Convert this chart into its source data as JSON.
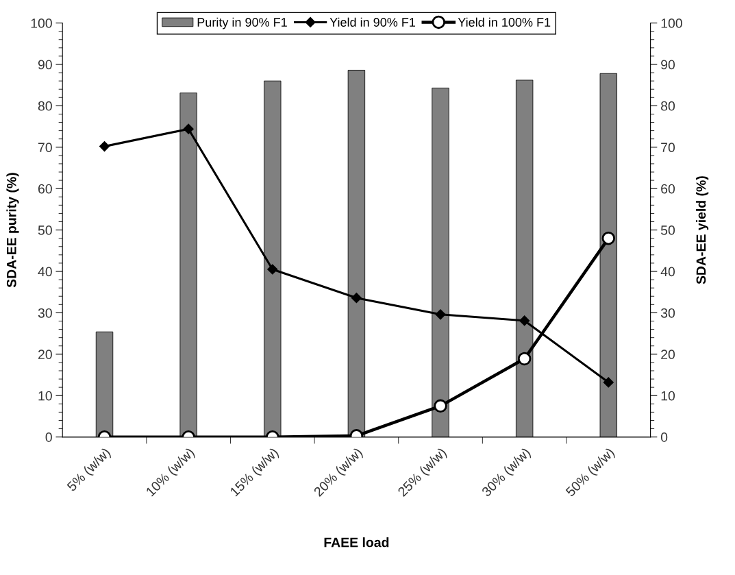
{
  "chart_data": {
    "type": "bar",
    "xlabel": "FAEE load",
    "ylabel": "SDA-EE purity (%)",
    "y2label": "SDA-EE yield (%)",
    "categories": [
      "5% (w/w)",
      "10% (w/w)",
      "15% (w/w)",
      "20% (w/w)",
      "25% (w/w)",
      "30% (w/w)",
      "50% (w/w)"
    ],
    "series": [
      {
        "name": "Purity in 90% F1",
        "color": "#808080",
        "values": [
          25.4,
          83.1,
          86.0,
          88.6,
          84.3,
          86.2,
          87.8
        ]
      },
      {
        "name": "Yield in 90% F1",
        "type": "line",
        "axis": "y2",
        "marker": "diamond",
        "color": "#000000",
        "values": [
          70.2,
          74.4,
          40.5,
          33.6,
          29.6,
          28.1,
          13.2
        ]
      },
      {
        "name": "Yield in 100% F1",
        "type": "line",
        "axis": "y2",
        "marker": "circle",
        "color": "#000000",
        "values": [
          0,
          0,
          0,
          0.3,
          7.5,
          18.9,
          48.0
        ]
      }
    ],
    "ylim": [
      0,
      100
    ],
    "yticks": [
      0,
      10,
      20,
      30,
      40,
      50,
      60,
      70,
      80,
      90,
      100
    ],
    "y2lim": [
      0,
      100
    ],
    "y2ticks": [
      0,
      10,
      20,
      30,
      40,
      50,
      60,
      70,
      80,
      90,
      100
    ],
    "grid": false,
    "legend": "top",
    "line_style": "solid"
  }
}
